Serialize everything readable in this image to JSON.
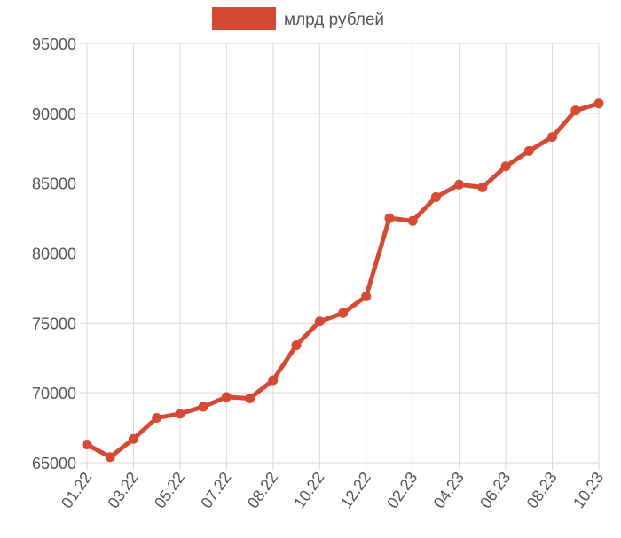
{
  "chart_data": {
    "type": "line",
    "title": "",
    "xlabel": "",
    "ylabel": "",
    "ylim": [
      65000,
      95000
    ],
    "y_ticks": [
      "95000",
      "90000",
      "85000",
      "80000",
      "75000",
      "70000",
      "65000"
    ],
    "x": [
      "01.22",
      "02.22",
      "03.22",
      "04.22",
      "05.22",
      "06.22",
      "07.22",
      "08.22",
      "08.22",
      "09.22",
      "10.22",
      "11.22",
      "12.22",
      "01.23",
      "02.23",
      "03.23",
      "04.23",
      "05.23",
      "06.23",
      "07.23",
      "08.23",
      "09.23",
      "10.23"
    ],
    "x_tick_labels": [
      "01.22",
      "03.22",
      "05.22",
      "07.22",
      "08.22",
      "10.22",
      "12.22",
      "02.23",
      "04.23",
      "06.23",
      "08.23",
      "10.23"
    ],
    "grid": true,
    "legend_position": "top",
    "series": [
      {
        "name": "млрд рублей",
        "color": "#d64a35",
        "values": [
          66300,
          65400,
          66700,
          68200,
          68500,
          69000,
          69700,
          69600,
          70900,
          73400,
          75100,
          75700,
          76900,
          82500,
          82300,
          84000,
          84900,
          84700,
          86200,
          87300,
          88300,
          90200,
          90700
        ]
      }
    ]
  }
}
